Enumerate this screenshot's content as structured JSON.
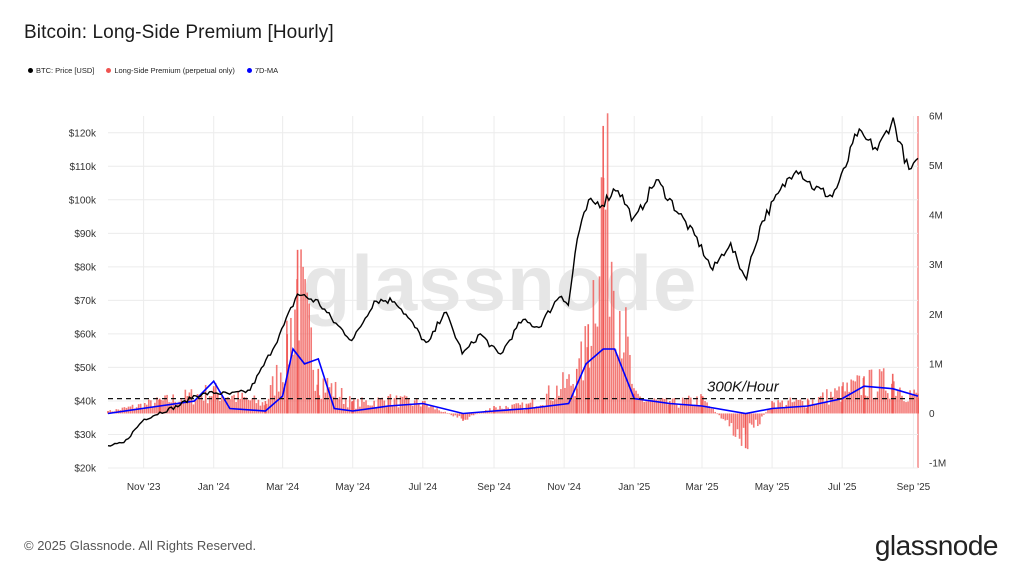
{
  "header": {
    "title": "Bitcoin: Long-Side Premium [Hourly]"
  },
  "legend": [
    {
      "label": "BTC: Price [USD]",
      "color": "#000000"
    },
    {
      "label": "Long-Side Premium (perpetual only)",
      "color": "#ef5350"
    },
    {
      "label": "7D-MA",
      "color": "#0000ff"
    }
  ],
  "footer": {
    "copyright": "© 2025 Glassnode. All Rights Reserved.",
    "brand": "glassnode"
  },
  "chart_data": {
    "type": "line",
    "title": "Bitcoin: Long-Side Premium [Hourly]",
    "watermark": "glassnode",
    "x_range": [
      "2023-10-01",
      "2025-09-05"
    ],
    "x_ticks": [
      "Nov '23",
      "Jan '24",
      "Mar '24",
      "May '24",
      "Jul '24",
      "Sep '24",
      "Nov '24",
      "Jan '25",
      "Mar '25",
      "May '25",
      "Jul '25",
      "Sep '25"
    ],
    "y_left": {
      "label": "",
      "ticks": [
        "$20k",
        "$30k",
        "$40k",
        "$50k",
        "$60k",
        "$70k",
        "$80k",
        "$90k",
        "$100k",
        "$110k",
        "$120k"
      ],
      "range": [
        20000,
        125000
      ]
    },
    "y_right": {
      "label": "",
      "ticks": [
        "-1M",
        "0",
        "1M",
        "2M",
        "3M",
        "4M",
        "5M",
        "6M"
      ],
      "range": [
        -1100000,
        6000000
      ]
    },
    "grid": true,
    "annotation": {
      "text": "300K/Hour",
      "threshold": 300000,
      "line_style": "dashed"
    },
    "series": [
      {
        "name": "BTC: Price [USD]",
        "axis": "left",
        "color": "#000000",
        "x": [
          "2023-10-01",
          "2023-10-15",
          "2023-11-01",
          "2023-11-15",
          "2023-12-01",
          "2023-12-15",
          "2024-01-01",
          "2024-01-15",
          "2024-02-01",
          "2024-02-15",
          "2024-03-01",
          "2024-03-14",
          "2024-04-01",
          "2024-04-15",
          "2024-05-01",
          "2024-05-20",
          "2024-06-07",
          "2024-06-25",
          "2024-07-05",
          "2024-07-20",
          "2024-08-05",
          "2024-08-20",
          "2024-09-06",
          "2024-09-25",
          "2024-10-10",
          "2024-10-29",
          "2024-11-05",
          "2024-11-12",
          "2024-11-22",
          "2024-12-05",
          "2024-12-17",
          "2025-01-01",
          "2025-01-20",
          "2025-02-05",
          "2025-02-25",
          "2025-03-10",
          "2025-03-25",
          "2025-04-08",
          "2025-04-22",
          "2025-05-10",
          "2025-05-22",
          "2025-06-05",
          "2025-06-22",
          "2025-07-01",
          "2025-07-14",
          "2025-08-01",
          "2025-08-14",
          "2025-08-28",
          "2025-09-05"
        ],
        "values": [
          26500,
          27500,
          34500,
          36500,
          38500,
          41500,
          42500,
          42000,
          43000,
          51500,
          61500,
          72000,
          69500,
          63500,
          58000,
          70000,
          70000,
          61500,
          56500,
          67000,
          54000,
          60000,
          53500,
          64000,
          62000,
          72000,
          68500,
          88000,
          99000,
          99000,
          104000,
          93500,
          106000,
          98000,
          88000,
          79000,
          87000,
          76500,
          93500,
          103500,
          110000,
          104000,
          101000,
          107000,
          120000,
          115000,
          124000,
          108500,
          111000
        ]
      },
      {
        "name": "Long-Side Premium (perpetual only)",
        "axis": "right",
        "color": "#ef5350",
        "x": [
          "2023-10-01",
          "2023-11-15",
          "2024-01-01",
          "2024-02-15",
          "2024-03-05",
          "2024-03-14",
          "2024-04-01",
          "2024-05-01",
          "2024-06-01",
          "2024-07-01",
          "2024-08-05",
          "2024-09-01",
          "2024-10-01",
          "2024-11-12",
          "2024-11-22",
          "2024-12-05",
          "2025-01-01",
          "2025-02-01",
          "2025-03-01",
          "2025-04-08",
          "2025-05-01",
          "2025-06-01",
          "2025-07-01",
          "2025-07-20",
          "2025-08-14",
          "2025-09-05"
        ],
        "values": [
          50000,
          300000,
          550000,
          250000,
          1600000,
          3300000,
          900000,
          250000,
          350000,
          250000,
          -150000,
          150000,
          200000,
          900000,
          1800000,
          5800000,
          400000,
          250000,
          350000,
          -700000,
          250000,
          300000,
          550000,
          750000,
          800000,
          400000
        ]
      },
      {
        "name": "7D-MA",
        "axis": "right",
        "color": "#0000ff",
        "x": [
          "2023-10-01",
          "2023-11-15",
          "2023-12-15",
          "2024-01-01",
          "2024-01-15",
          "2024-02-15",
          "2024-03-01",
          "2024-03-10",
          "2024-03-20",
          "2024-04-01",
          "2024-04-15",
          "2024-05-01",
          "2024-06-01",
          "2024-07-01",
          "2024-08-05",
          "2024-09-01",
          "2024-10-01",
          "2024-11-05",
          "2024-11-20",
          "2024-12-05",
          "2024-12-15",
          "2025-01-01",
          "2025-02-01",
          "2025-03-01",
          "2025-04-08",
          "2025-05-01",
          "2025-06-01",
          "2025-07-01",
          "2025-07-20",
          "2025-08-14",
          "2025-09-05"
        ],
        "values": [
          0,
          150000,
          250000,
          650000,
          100000,
          50000,
          350000,
          1300000,
          1000000,
          1100000,
          100000,
          50000,
          150000,
          200000,
          0,
          50000,
          100000,
          200000,
          1000000,
          1300000,
          1300000,
          300000,
          200000,
          150000,
          0,
          100000,
          150000,
          300000,
          550000,
          500000,
          350000
        ]
      }
    ]
  }
}
